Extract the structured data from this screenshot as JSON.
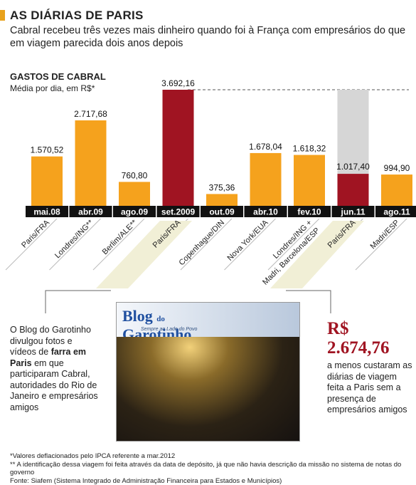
{
  "header": {
    "title": "AS DIÁRIAS DE PARIS",
    "subtitle": "Cabral recebeu três vezes mais dinheiro quando foi à França com empresários do que em viagem parecida dois anos depois"
  },
  "chart_data": {
    "type": "bar",
    "title": "GASTOS DE CABRAL",
    "ylabel": "Média por dia, em R$*",
    "categories": [
      "mai.08",
      "abr.09",
      "ago.09",
      "set.2009",
      "out.09",
      "abr.10",
      "fev.10",
      "jun.11",
      "ago.11"
    ],
    "destinations": [
      "Paris/FRA",
      "Londres/ING**",
      "Berlim/ALE**",
      "Paris/FRA",
      "Copenhague/DIN",
      "Nova York/EUA",
      "Londres/ING + Madri, Barcelona/ESP",
      "Paris/FRA",
      "Madri/ESP"
    ],
    "values": [
      1570.52,
      2717.68,
      760.8,
      3692.16,
      375.36,
      1678.04,
      1618.32,
      1017.4,
      994.9
    ],
    "value_labels": [
      "1.570,52",
      "2.717,68",
      "760,80",
      "3.692,16",
      "375,36",
      "1.678,04",
      "1.618,32",
      "1.017,40",
      "994,90"
    ],
    "highlighted": [
      false,
      false,
      false,
      true,
      false,
      false,
      false,
      true,
      false
    ],
    "reference_value": 3692.16,
    "ylim": [
      0,
      3692.16
    ],
    "grid": false,
    "colors": {
      "bar": "#f5a21d",
      "highlight": "#a01422",
      "reference": "#d6d6d6",
      "axis": "#111111"
    }
  },
  "notes": {
    "left_before": "O Blog do Garotinho divulgou fotos e vídeos de ",
    "left_bold": "farra em Paris",
    "left_after": " em que participaram Cabral, autoridades do Rio de Janeiro e empresários amigos",
    "right_amount_currency": "R$",
    "right_amount": "2.674,76",
    "right_text": "a menos custaram as diárias de viagem feita a Paris sem a presença de empresários amigos"
  },
  "photo": {
    "blog_title": "Blog",
    "blog_title_small": "do",
    "blog_name": "Garotinho",
    "tagline": "Sempre ao Lado do Povo"
  },
  "footnotes": [
    "*Valores deflacionados pelo IPCA referente a mar.2012",
    "** A identificação dessa viagem foi feita através da data de depósito, já que não havia descrição da missão no sistema de notas do governo",
    "Fonte: Siafem (Sistema Integrado de Administração Financeira para Estados e Municípios)"
  ]
}
